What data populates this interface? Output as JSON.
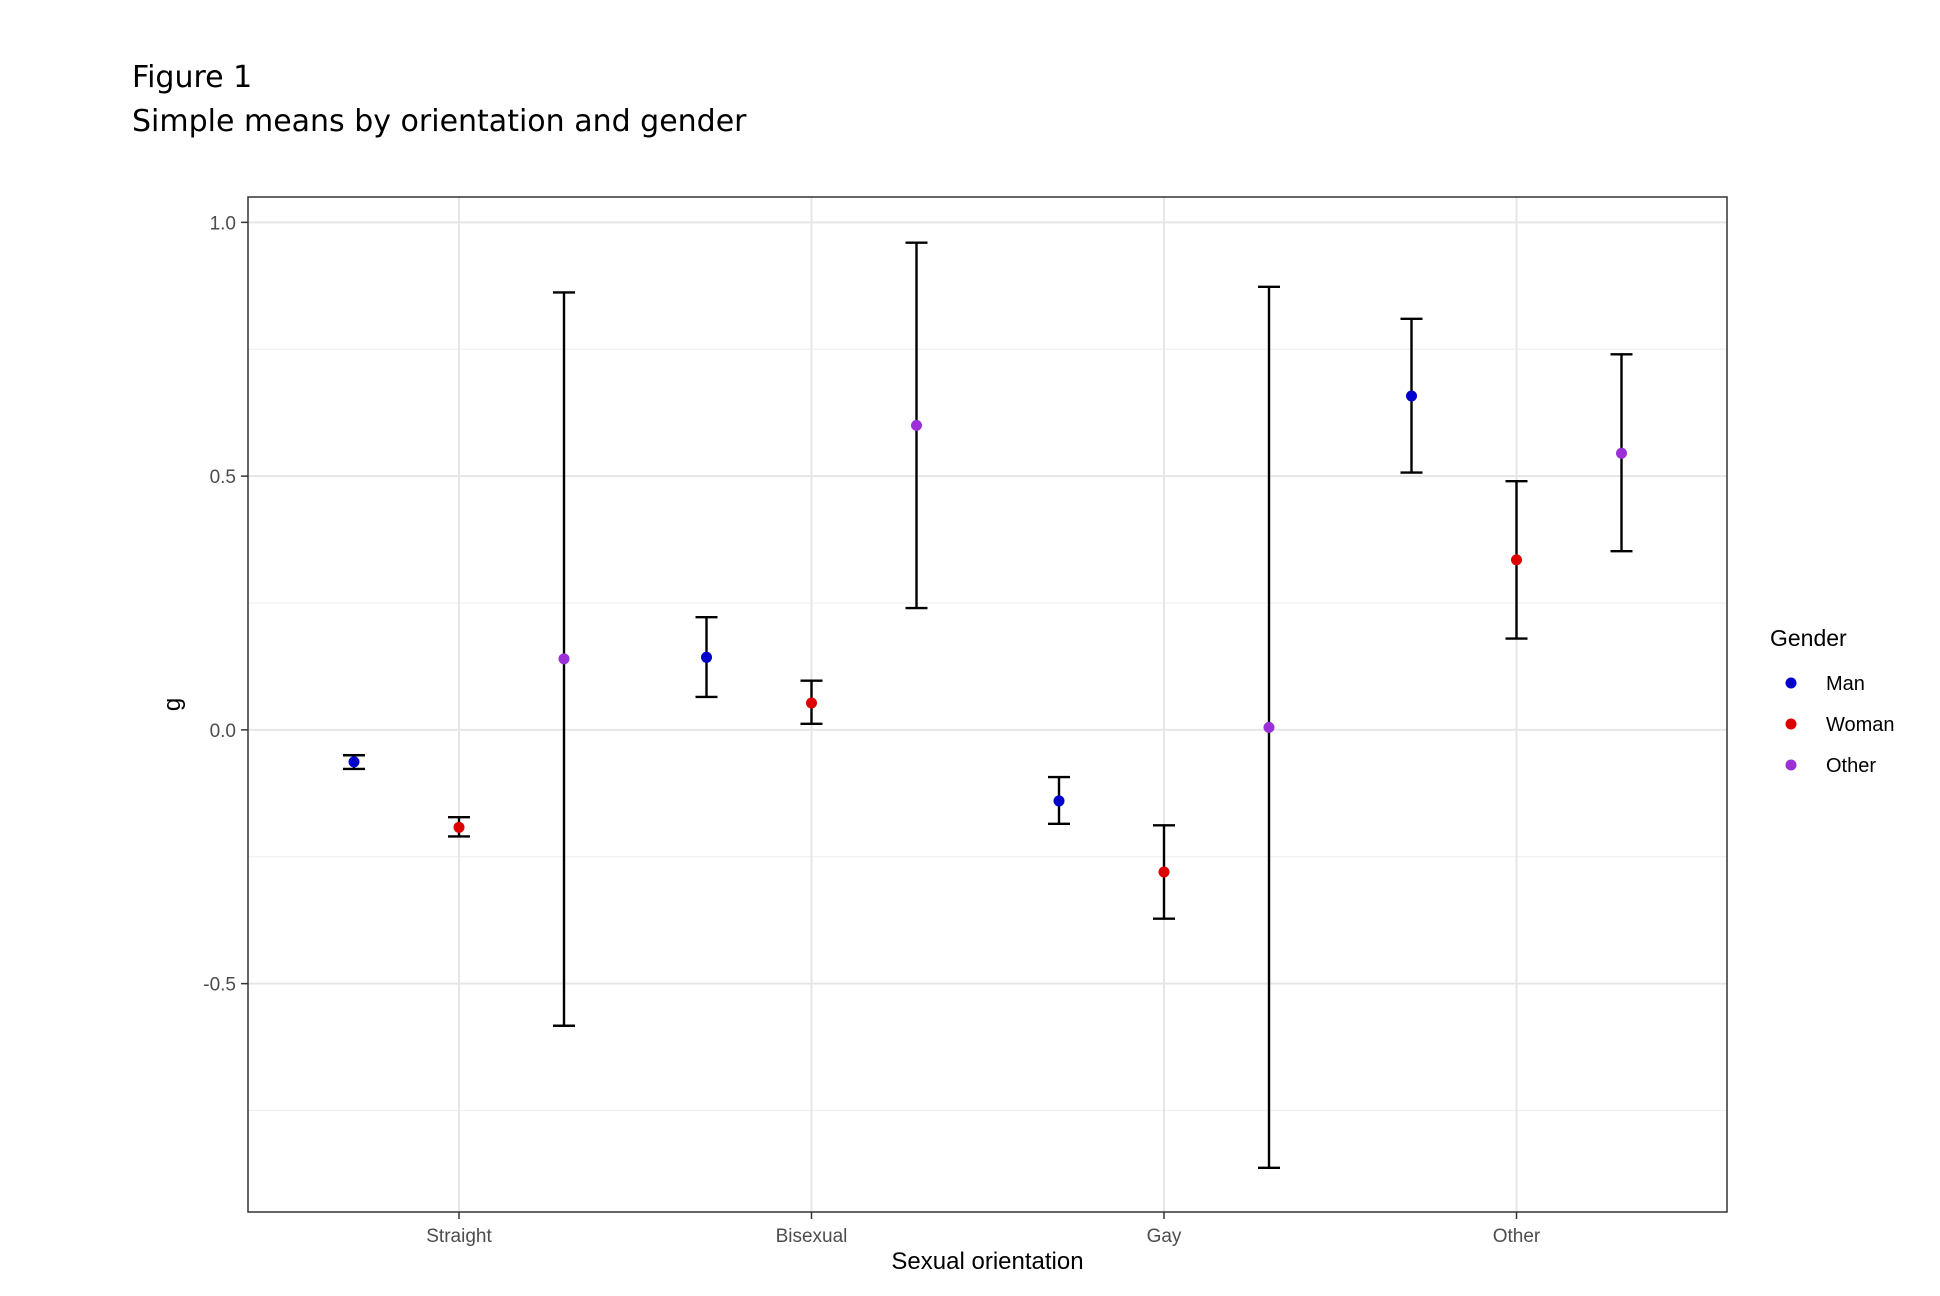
{
  "caption": {
    "figure_label": "Figure 1",
    "figure_title": "Simple means by orientation and gender"
  },
  "chart_data": {
    "type": "scatter",
    "subtype": "point-with-error-bars",
    "xlabel": "Sexual orientation",
    "ylabel": "g",
    "categories": [
      "Straight",
      "Bisexual",
      "Gay",
      "Other"
    ],
    "ylim": [
      -0.95,
      1.05
    ],
    "yticks": [
      -0.5,
      0.0,
      0.5,
      1.0
    ],
    "ytick_labels": [
      "-0.5",
      "0.0",
      "0.5",
      "1.0"
    ],
    "grid": true,
    "legend": {
      "title": "Gender",
      "placement": "right"
    },
    "series": [
      {
        "name": "Man",
        "color": "#0000cc",
        "points": [
          {
            "category": "Straight",
            "y": -0.063,
            "lower": -0.077,
            "upper": -0.05
          },
          {
            "category": "Bisexual",
            "y": 0.143,
            "lower": 0.065,
            "upper": 0.222
          },
          {
            "category": "Gay",
            "y": -0.14,
            "lower": -0.185,
            "upper": -0.093
          },
          {
            "category": "Other",
            "y": 0.658,
            "lower": 0.507,
            "upper": 0.81
          }
        ]
      },
      {
        "name": "Woman",
        "color": "#dd0000",
        "points": [
          {
            "category": "Straight",
            "y": -0.192,
            "lower": -0.21,
            "upper": -0.172
          },
          {
            "category": "Bisexual",
            "y": 0.053,
            "lower": 0.012,
            "upper": 0.097
          },
          {
            "category": "Gay",
            "y": -0.28,
            "lower": -0.372,
            "upper": -0.188
          },
          {
            "category": "Other",
            "y": 0.335,
            "lower": 0.18,
            "upper": 0.49
          }
        ]
      },
      {
        "name": "Other",
        "color": "#9b30d9",
        "points": [
          {
            "category": "Straight",
            "y": 0.14,
            "lower": -0.583,
            "upper": 0.862
          },
          {
            "category": "Bisexual",
            "y": 0.6,
            "lower": 0.24,
            "upper": 0.96
          },
          {
            "category": "Gay",
            "y": 0.005,
            "lower": -0.863,
            "upper": 0.873
          },
          {
            "category": "Other",
            "y": 0.545,
            "lower": 0.352,
            "upper": 0.74
          }
        ]
      }
    ]
  }
}
